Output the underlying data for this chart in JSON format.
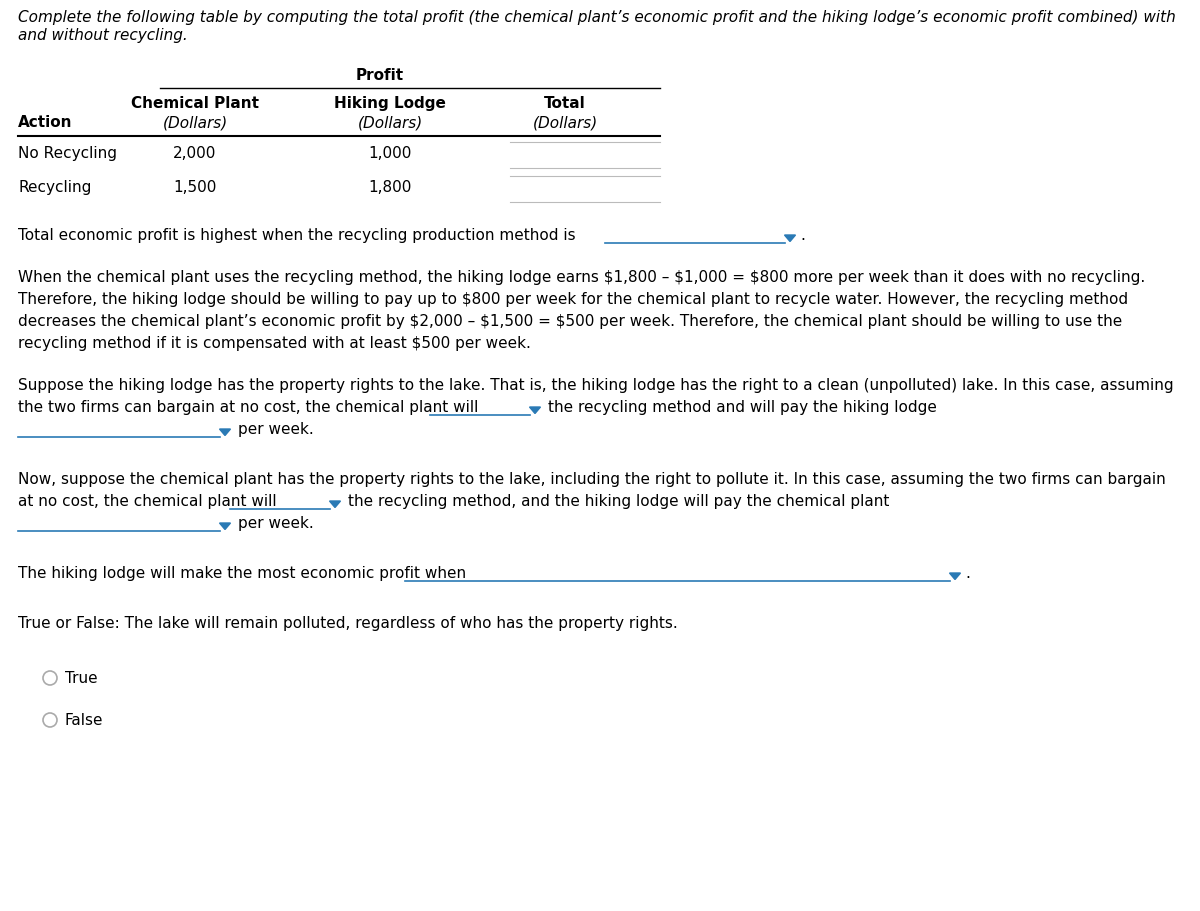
{
  "title_line1": "Complete the following table by computing the total profit (the chemical plant’s economic profit and the hiking lodge’s economic profit combined) with",
  "title_line2": "and without recycling.",
  "table_profit_header": "Profit",
  "col0_label": "Action",
  "col1_label": "Chemical Plant",
  "col2_label": "Hiking Lodge",
  "col3_label": "Total",
  "col_sub": "(Dollars)",
  "row1_label": "No Recycling",
  "row2_label": "Recycling",
  "row1_c1": "2,000",
  "row1_c2": "1,000",
  "row2_c1": "1,500",
  "row2_c2": "1,800",
  "q1": "Total economic profit is highest when the recycling production method is",
  "p1_l1": "When the chemical plant uses the recycling method, the hiking lodge earns $1,800 – $1,000 = $800 more per week than it does with no recycling.",
  "p1_l2": "Therefore, the hiking lodge should be willing to pay up to $800 per week for the chemical plant to recycle water. However, the recycling method",
  "p1_l3": "decreases the chemical plant’s economic profit by $2,000 – $1,500 = $500 per week. Therefore, the chemical plant should be willing to use the",
  "p1_l4": "recycling method if it is compensated with at least $500 per week.",
  "p2_l1": "Suppose the hiking lodge has the property rights to the lake. That is, the hiking lodge has the right to a clean (unpolluted) lake. In this case, assuming",
  "p2_l2a": "the two firms can bargain at no cost, the chemical plant will",
  "p2_l2b": "the recycling method and will pay the hiking lodge",
  "p2_l3b": "per week.",
  "p3_l1": "Now, suppose the chemical plant has the property rights to the lake, including the right to pollute it. In this case, assuming the two firms can bargain",
  "p3_l2a": "at no cost, the chemical plant will",
  "p3_l2b": "the recycling method, and the hiking lodge will pay the chemical plant",
  "p3_l3b": "per week.",
  "q2": "The hiking lodge will make the most economic profit when",
  "q3": "True or False: The lake will remain polluted, regardless of who has the property rights.",
  "radio_true": "True",
  "radio_false": "False",
  "bg": "#ffffff",
  "tc": "#000000",
  "dc": "#2a7ab5",
  "lc": "#888888",
  "fs": 11.0
}
